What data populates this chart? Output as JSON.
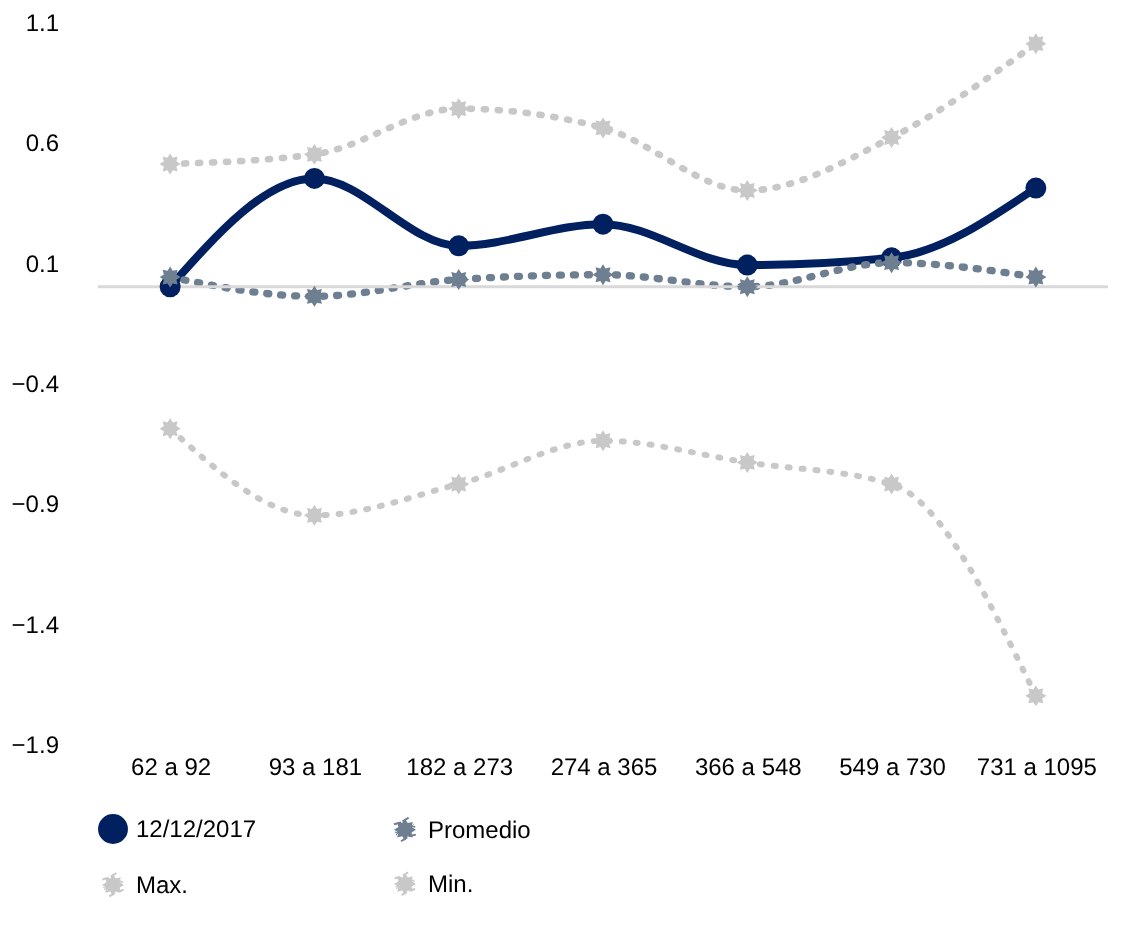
{
  "chart_data": {
    "type": "line",
    "categories": [
      "62 a 92",
      "93 a 181",
      "182 a 273",
      "274 a 365",
      "366 a 548",
      "549 a 730",
      "731 a 1095"
    ],
    "series": [
      {
        "name": "12/12/2017",
        "color": "#002060",
        "values": [
          0.0,
          0.45,
          0.17,
          0.26,
          0.09,
          0.12,
          0.41
        ],
        "marker": "circle",
        "line_style": "solid"
      },
      {
        "name": "Promedio",
        "color": "#6e7f91",
        "values": [
          0.04,
          -0.04,
          0.03,
          0.05,
          0.0,
          0.1,
          0.04
        ],
        "marker": "star",
        "line_style": "dotted"
      },
      {
        "name": "Max.",
        "color": "#c8c8c8",
        "values": [
          0.51,
          0.55,
          0.74,
          0.66,
          0.4,
          0.62,
          1.01
        ],
        "marker": "star",
        "line_style": "dotted"
      },
      {
        "name": "Min.",
        "color": "#c8c8c8",
        "values": [
          -0.59,
          -0.95,
          -0.82,
          -0.64,
          -0.73,
          -0.82,
          -1.7
        ],
        "marker": "star",
        "line_style": "dotted"
      }
    ],
    "ylim": [
      -1.9,
      1.1
    ],
    "yticks": [
      -1.9,
      -1.4,
      -0.9,
      -0.4,
      0.1,
      0.6,
      1.1
    ],
    "ref_lines": [
      {
        "axis": "y",
        "value": 0,
        "color": "#d9d9d9"
      }
    ],
    "grid": false,
    "legend": "bottom"
  }
}
